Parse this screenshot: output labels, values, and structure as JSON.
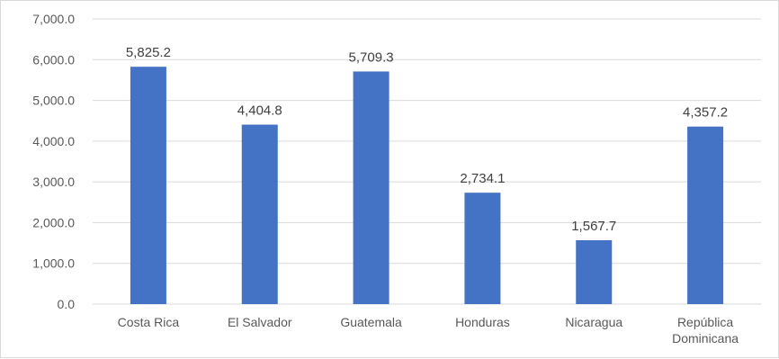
{
  "chart_data": {
    "type": "bar",
    "title": "",
    "xlabel": "",
    "ylabel": "",
    "categories": [
      "Costa Rica",
      "El Salvador",
      "Guatemala",
      "Honduras",
      "Nicaragua",
      "República Dominicana"
    ],
    "values": [
      5825.2,
      4404.8,
      5709.3,
      2734.1,
      1567.7,
      4357.2
    ],
    "value_labels": [
      "5,825.2",
      "4,404.8",
      "5,709.3",
      "2,734.1",
      "1,567.7",
      "4,357.2"
    ],
    "ylim": [
      0,
      7000
    ],
    "yticks": [
      0,
      1000,
      2000,
      3000,
      4000,
      5000,
      6000,
      7000
    ],
    "ytick_labels": [
      "0.0",
      "1,000.0",
      "2,000.0",
      "3,000.0",
      "4,000.0",
      "5,000.0",
      "6,000.0",
      "7,000.0"
    ],
    "grid": true,
    "legend": "none",
    "bar_color": "#4472c4",
    "grid_color": "#d9d9d9"
  }
}
